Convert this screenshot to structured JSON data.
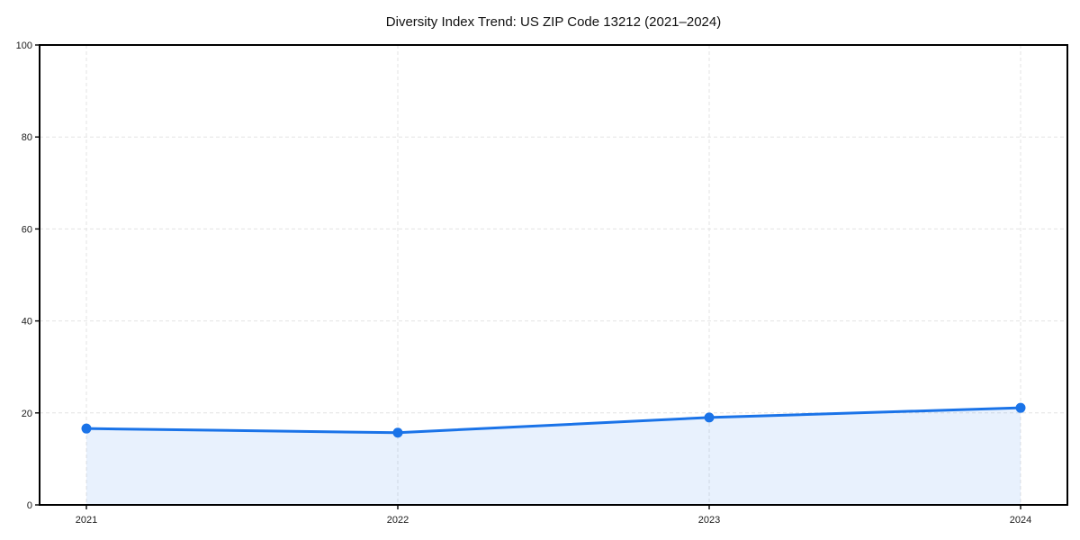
{
  "chart_data": {
    "type": "line",
    "title": "Diversity Index Trend: US ZIP Code 13212 (2021–2024)",
    "categories": [
      "2021",
      "2022",
      "2023",
      "2024"
    ],
    "series": [
      {
        "name": "Diversity Index",
        "values": [
          16.6,
          15.7,
          19.0,
          21.1
        ]
      }
    ],
    "xlabel": "",
    "ylabel": "",
    "ylim": [
      0,
      100
    ],
    "yticks": [
      0,
      20,
      40,
      60,
      80,
      100
    ],
    "grid": "dashed, horizontal and vertical",
    "legend_position": "none",
    "area_fill": true,
    "colors": {
      "line": "#1a73e8",
      "marker": "#1a73e8",
      "fill": "#1a73e8",
      "fill_opacity": "0.1",
      "grid": "#e3e3e3",
      "spine": "#000000",
      "text": "#1a1a1a"
    }
  }
}
